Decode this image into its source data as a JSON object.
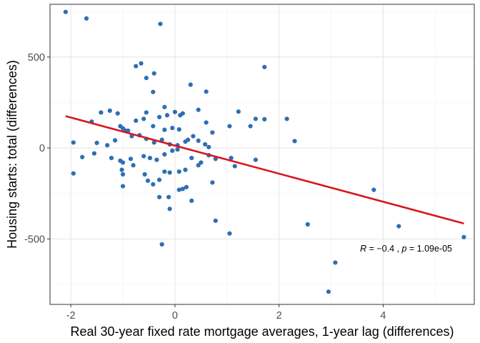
{
  "chart_data": {
    "type": "scatter",
    "title": "",
    "xlabel": "Real 30-year fixed rate mortgage averages, 1-year lag (differences)",
    "ylabel": "Housing starts: total (differences)",
    "xlim": [
      -2.4,
      5.75
    ],
    "ylim": [
      -860,
      790
    ],
    "x_ticks": [
      -2,
      0,
      2,
      4
    ],
    "y_ticks": [
      -500,
      0,
      500
    ],
    "x_tick_labels": [
      "-2",
      "0",
      "2",
      "4"
    ],
    "y_tick_labels": [
      "-500",
      "0",
      "500"
    ],
    "grid": true,
    "legend": "none",
    "point_color": "#2c6fb4",
    "fit_line": {
      "color": "#d7191c",
      "x": [
        -2.1,
        5.55
      ],
      "y": [
        175,
        -415
      ]
    },
    "annotation": {
      "r": "−0.4",
      "p": "1.09e-05"
    },
    "points": [
      [
        -2.1,
        748
      ],
      [
        -1.7,
        712
      ],
      [
        -0.28,
        682
      ],
      [
        -0.65,
        465
      ],
      [
        -0.75,
        450
      ],
      [
        1.72,
        445
      ],
      [
        -0.4,
        410
      ],
      [
        -0.55,
        385
      ],
      [
        0.3,
        348
      ],
      [
        -0.42,
        308
      ],
      [
        0.6,
        310
      ],
      [
        -1.25,
        205
      ],
      [
        -1.42,
        195
      ],
      [
        -1.1,
        190
      ],
      [
        -0.55,
        195
      ],
      [
        -0.2,
        225
      ],
      [
        0.0,
        198
      ],
      [
        0.45,
        210
      ],
      [
        1.22,
        200
      ],
      [
        -0.6,
        160
      ],
      [
        -0.75,
        150
      ],
      [
        -0.3,
        170
      ],
      [
        -0.15,
        180
      ],
      [
        0.1,
        180
      ],
      [
        0.15,
        190
      ],
      [
        1.72,
        158
      ],
      [
        -1.6,
        145
      ],
      [
        -1.05,
        120
      ],
      [
        -1.0,
        108
      ],
      [
        -0.9,
        95
      ],
      [
        -0.42,
        120
      ],
      [
        -0.2,
        100
      ],
      [
        -0.05,
        110
      ],
      [
        0.08,
        102
      ],
      [
        0.6,
        140
      ],
      [
        1.55,
        160
      ],
      [
        2.15,
        160
      ],
      [
        1.45,
        120
      ],
      [
        0.35,
        65
      ],
      [
        0.25,
        45
      ],
      [
        -1.5,
        28
      ],
      [
        -1.3,
        15
      ],
      [
        -1.15,
        42
      ],
      [
        -0.95,
        95
      ],
      [
        -0.83,
        65
      ],
      [
        -0.68,
        70
      ],
      [
        -0.55,
        50
      ],
      [
        -0.4,
        30
      ],
      [
        -0.25,
        45
      ],
      [
        -0.1,
        20
      ],
      [
        0.05,
        15
      ],
      [
        0.2,
        35
      ],
      [
        0.45,
        40
      ],
      [
        0.58,
        20
      ],
      [
        0.65,
        5
      ],
      [
        0.72,
        85
      ],
      [
        1.05,
        120
      ],
      [
        2.3,
        38
      ],
      [
        -1.95,
        30
      ],
      [
        -1.78,
        -50
      ],
      [
        -1.55,
        -30
      ],
      [
        -1.22,
        -55
      ],
      [
        -1.05,
        -70
      ],
      [
        -1.0,
        -80
      ],
      [
        -0.85,
        -60
      ],
      [
        -0.6,
        -45
      ],
      [
        -0.48,
        -55
      ],
      [
        -0.35,
        -65
      ],
      [
        -0.2,
        -35
      ],
      [
        -0.05,
        -15
      ],
      [
        0.05,
        -8
      ],
      [
        0.32,
        -55
      ],
      [
        0.5,
        -80
      ],
      [
        0.65,
        -40
      ],
      [
        0.78,
        -60
      ],
      [
        1.08,
        -55
      ],
      [
        1.15,
        -100
      ],
      [
        1.55,
        -65
      ],
      [
        -1.95,
        -140
      ],
      [
        -1.02,
        -120
      ],
      [
        -1.0,
        -145
      ],
      [
        -0.8,
        -95
      ],
      [
        -0.58,
        -145
      ],
      [
        -0.52,
        -180
      ],
      [
        -0.42,
        -200
      ],
      [
        -0.3,
        -175
      ],
      [
        -0.2,
        -130
      ],
      [
        -0.1,
        -135
      ],
      [
        0.08,
        -130
      ],
      [
        0.2,
        -120
      ],
      [
        0.45,
        -95
      ],
      [
        0.72,
        -190
      ],
      [
        -1.0,
        -210
      ],
      [
        -0.3,
        -270
      ],
      [
        -0.12,
        -270
      ],
      [
        0.08,
        -230
      ],
      [
        0.15,
        -225
      ],
      [
        0.22,
        -215
      ],
      [
        0.32,
        -290
      ],
      [
        -0.1,
        -335
      ],
      [
        0.78,
        -400
      ],
      [
        1.05,
        -470
      ],
      [
        2.55,
        -420
      ],
      [
        3.82,
        -230
      ],
      [
        4.3,
        -430
      ],
      [
        5.55,
        -490
      ],
      [
        -0.25,
        -530
      ],
      [
        3.08,
        -630
      ],
      [
        2.95,
        -790
      ]
    ]
  }
}
